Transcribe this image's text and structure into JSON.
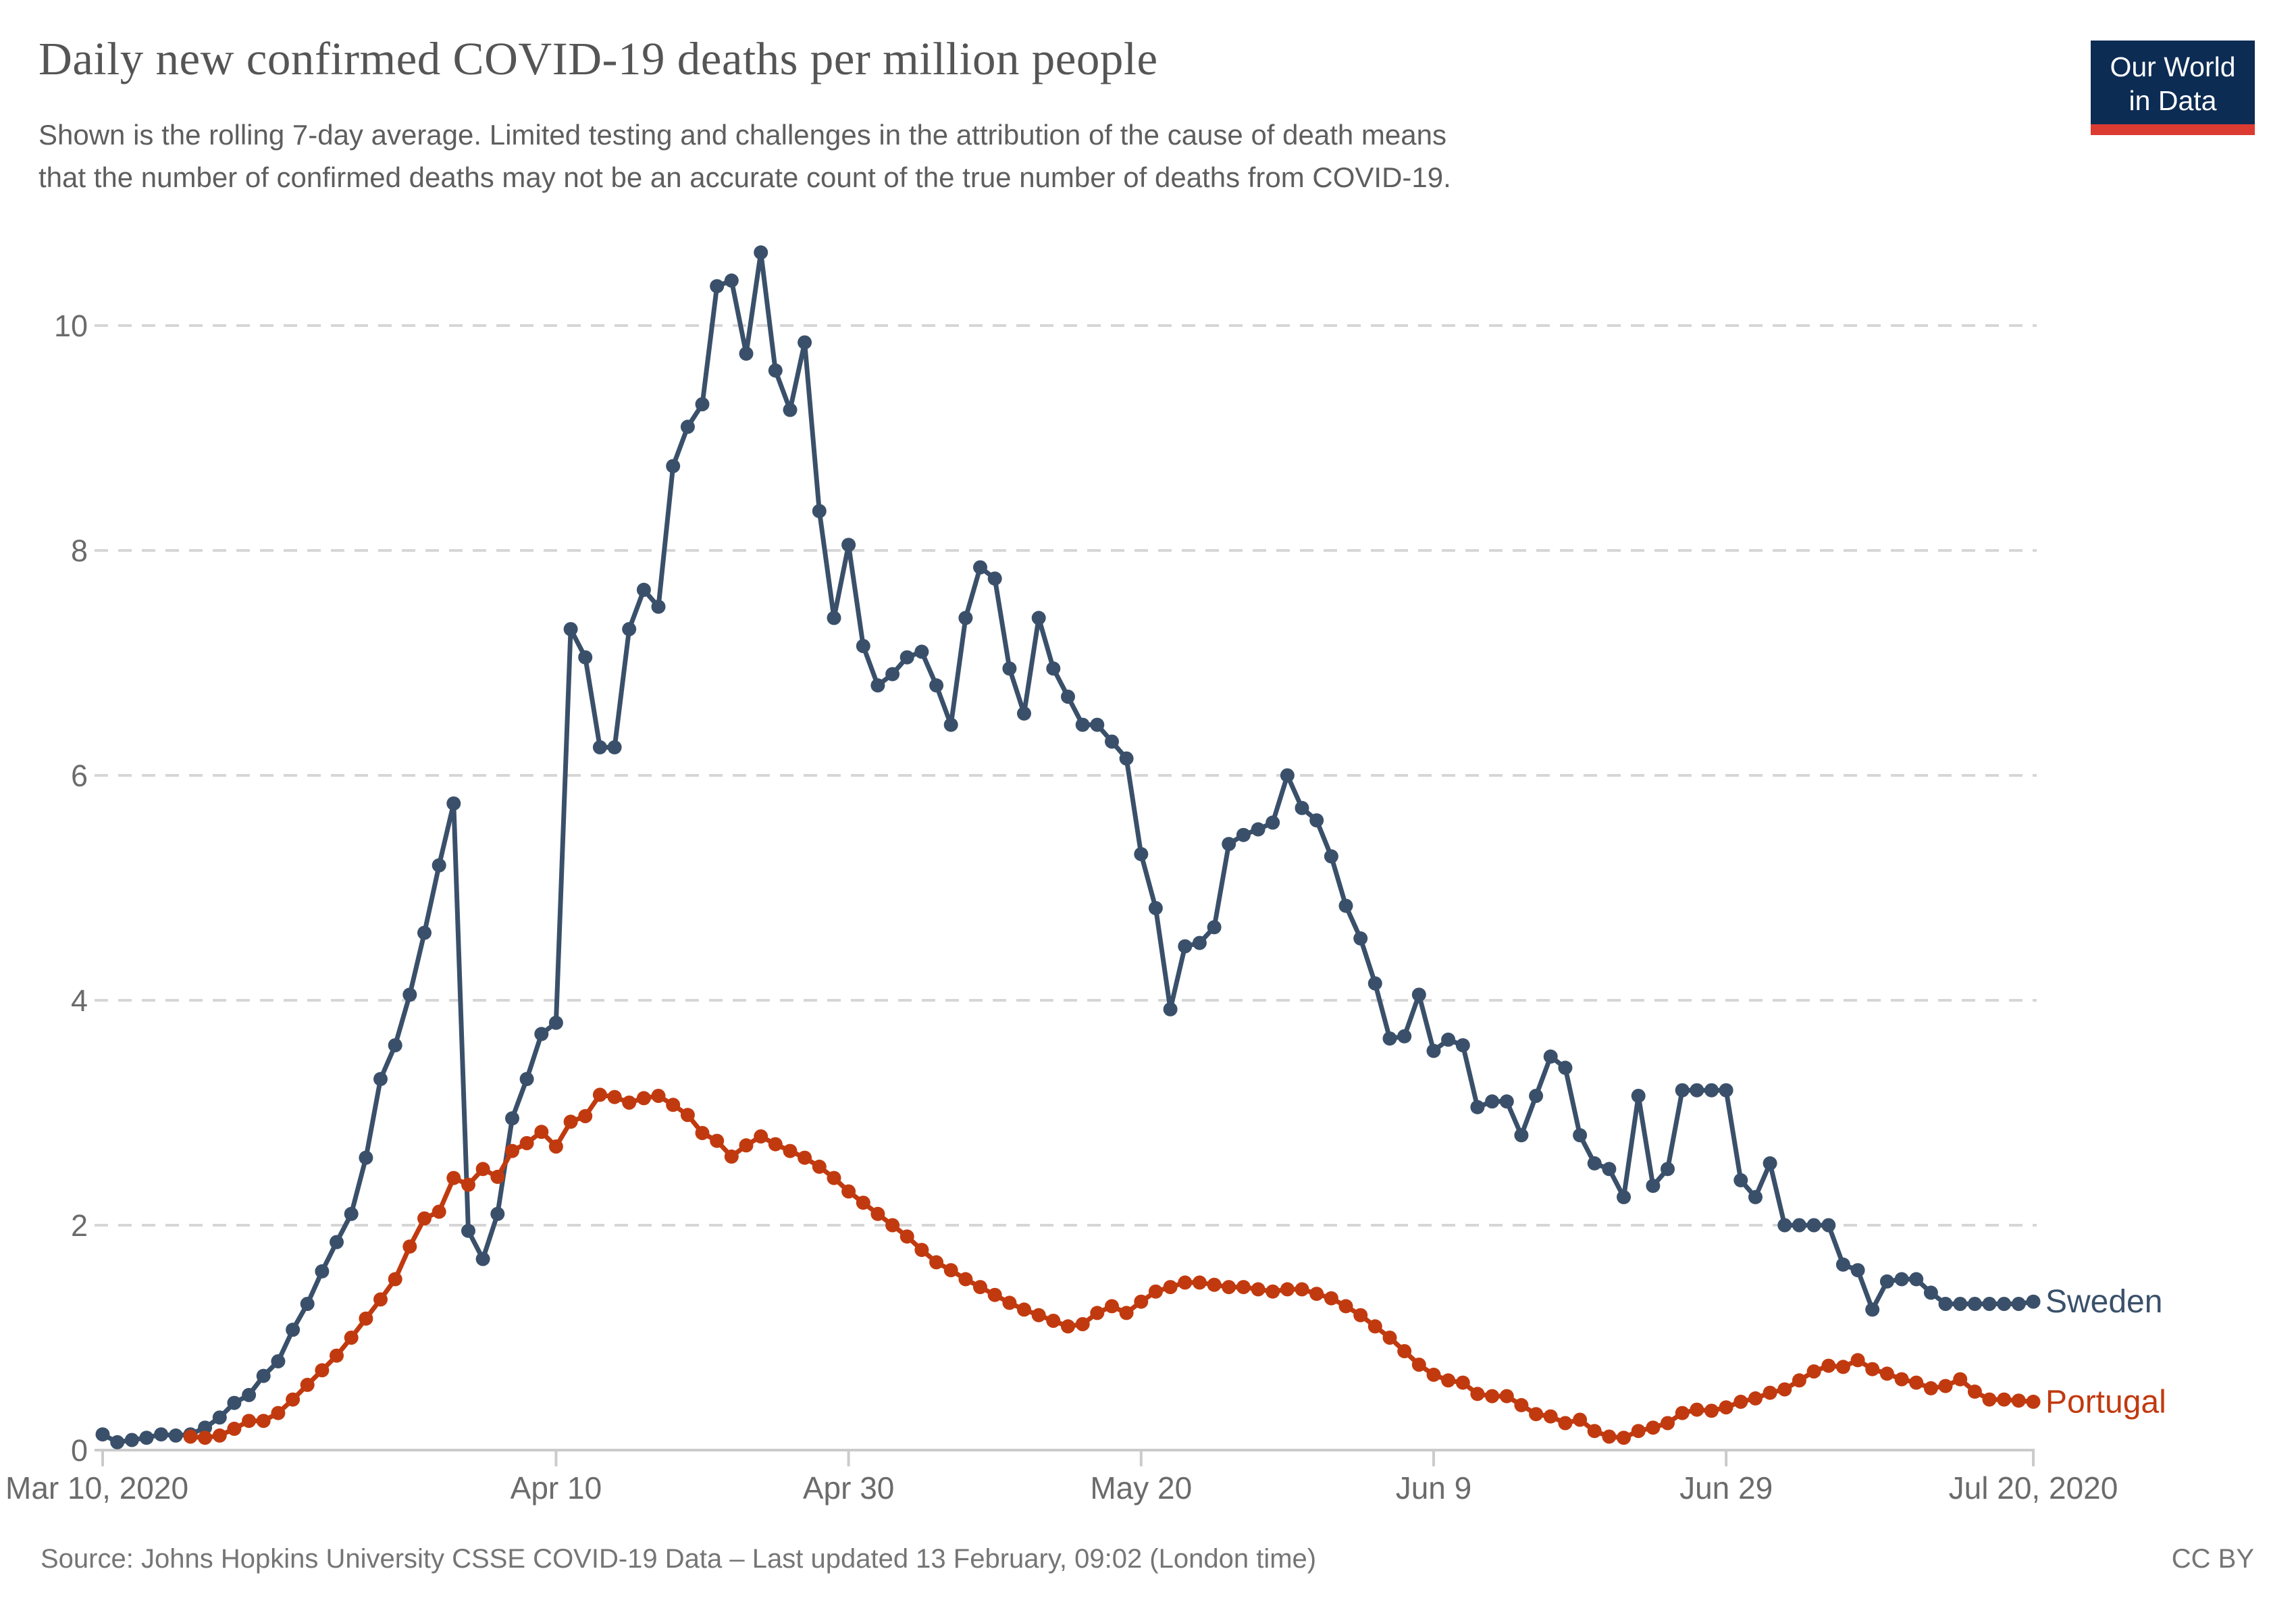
{
  "header": {
    "title": "Daily new confirmed COVID-19 deaths per million people",
    "subtitle_line1": "Shown is the rolling 7-day average. Limited testing and challenges in the attribution of the cause of death means",
    "subtitle_line2": "that the number of confirmed deaths may not be an accurate count of the true number of deaths from COVID-19.",
    "logo": {
      "line1": "Our World",
      "line2": "in Data",
      "bg_color": "#0d2c54",
      "bar_color": "#dc3b31"
    }
  },
  "footer": {
    "source": "Source: Johns Hopkins University CSSE COVID-19 Data – Last updated 13 February, 09:02 (London time)",
    "license": "CC BY"
  },
  "chart_data": {
    "type": "line",
    "title": "Daily new confirmed COVID-19 deaths per million people",
    "x_start_date": "2020-03-10",
    "x_end_date": "2020-07-20",
    "x_cadence": "daily",
    "xlabel": "",
    "ylabel": "",
    "ylim": [
      0,
      10.8
    ],
    "grid": "horizontal-dashed",
    "legend_position": "end-of-line-labels",
    "y_ticks": [
      0,
      2,
      4,
      6,
      8,
      10
    ],
    "x_ticks": [
      {
        "day": 0,
        "label": "Mar 10, 2020"
      },
      {
        "day": 31,
        "label": "Apr 10"
      },
      {
        "day": 51,
        "label": "Apr 30"
      },
      {
        "day": 71,
        "label": "May 20"
      },
      {
        "day": 91,
        "label": "Jun 9"
      },
      {
        "day": 111,
        "label": "Jun 29"
      },
      {
        "day": 132,
        "label": "Jul 20, 2020"
      }
    ],
    "series": [
      {
        "name": "Sweden",
        "color": "#3a506a",
        "values": [
          0.14,
          0.07,
          0.09,
          0.11,
          0.14,
          0.13,
          0.14,
          0.2,
          0.29,
          0.42,
          0.49,
          0.66,
          0.79,
          1.07,
          1.3,
          1.59,
          1.85,
          2.1,
          2.6,
          3.3,
          3.6,
          4.05,
          4.6,
          5.2,
          5.75,
          1.95,
          1.7,
          2.1,
          2.95,
          3.3,
          3.7,
          3.8,
          7.3,
          7.05,
          6.25,
          6.25,
          7.3,
          7.65,
          7.5,
          8.75,
          9.1,
          9.3,
          10.35,
          10.4,
          9.75,
          10.65,
          9.6,
          9.25,
          9.85,
          8.35,
          7.4,
          8.05,
          7.15,
          6.8,
          6.9,
          7.05,
          7.1,
          6.8,
          6.45,
          7.4,
          7.85,
          7.75,
          6.95,
          6.55,
          7.4,
          6.95,
          6.7,
          6.45,
          6.45,
          6.3,
          6.15,
          5.3,
          4.82,
          3.92,
          4.48,
          4.51,
          4.65,
          5.39,
          5.47,
          5.52,
          5.58,
          6.0,
          5.71,
          5.6,
          5.28,
          4.84,
          4.55,
          4.15,
          3.66,
          3.68,
          4.05,
          3.55,
          3.65,
          3.6,
          3.05,
          3.1,
          3.1,
          2.8,
          3.15,
          3.5,
          3.4,
          2.8,
          2.55,
          2.5,
          2.25,
          3.15,
          2.35,
          2.5,
          3.2,
          3.2,
          3.2,
          3.2,
          2.4,
          2.25,
          2.55,
          2.0,
          2.0,
          2.0,
          2.0,
          1.65,
          1.6,
          1.25,
          1.5,
          1.52,
          1.52,
          1.4,
          1.3,
          1.3,
          1.3,
          1.3,
          1.3,
          1.3,
          1.32
        ]
      },
      {
        "name": "Portugal",
        "color": "#c13a0f",
        "values": [
          null,
          null,
          null,
          null,
          null,
          null,
          0.12,
          0.11,
          0.13,
          0.19,
          0.26,
          0.26,
          0.33,
          0.45,
          0.58,
          0.71,
          0.84,
          1.0,
          1.17,
          1.34,
          1.52,
          1.81,
          2.06,
          2.12,
          2.42,
          2.36,
          2.5,
          2.43,
          2.66,
          2.73,
          2.83,
          2.7,
          2.92,
          2.97,
          3.16,
          3.14,
          3.09,
          3.13,
          3.15,
          3.07,
          2.98,
          2.82,
          2.75,
          2.61,
          2.71,
          2.79,
          2.72,
          2.66,
          2.6,
          2.52,
          2.42,
          2.3,
          2.2,
          2.1,
          2.0,
          1.9,
          1.78,
          1.67,
          1.6,
          1.52,
          1.45,
          1.38,
          1.31,
          1.25,
          1.2,
          1.15,
          1.1,
          1.12,
          1.22,
          1.28,
          1.22,
          1.32,
          1.41,
          1.45,
          1.49,
          1.49,
          1.47,
          1.45,
          1.45,
          1.43,
          1.41,
          1.43,
          1.43,
          1.39,
          1.35,
          1.28,
          1.2,
          1.1,
          1.0,
          0.88,
          0.76,
          0.67,
          0.62,
          0.6,
          0.5,
          0.48,
          0.48,
          0.4,
          0.32,
          0.3,
          0.24,
          0.27,
          0.17,
          0.12,
          0.11,
          0.17,
          0.2,
          0.24,
          0.33,
          0.36,
          0.35,
          0.38,
          0.43,
          0.46,
          0.51,
          0.54,
          0.62,
          0.7,
          0.75,
          0.74,
          0.8,
          0.72,
          0.68,
          0.63,
          0.6,
          0.55,
          0.57,
          0.63,
          0.52,
          0.45,
          0.45,
          0.44,
          0.43
        ]
      }
    ],
    "style": {
      "grid_color": "#d6d6d6",
      "axis_color": "#cbcbcb",
      "tick_label_color": "#6b6b6b",
      "line_width": 7,
      "marker_radius": 10.5
    }
  }
}
